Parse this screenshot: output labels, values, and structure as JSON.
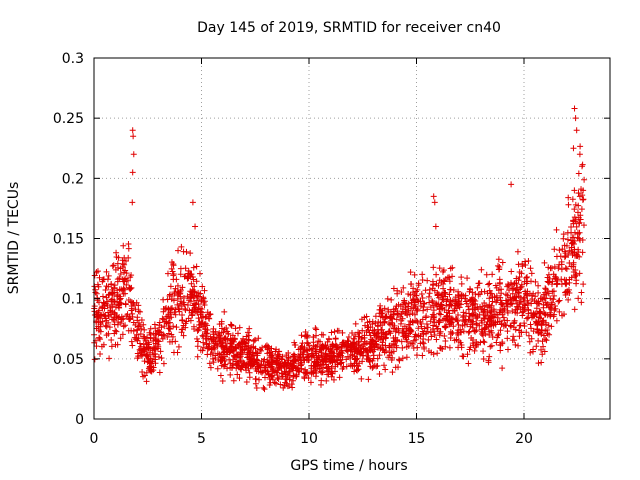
{
  "chart_data": {
    "type": "scatter",
    "title": "Day 145 of 2019, SRMTID for receiver cn40",
    "xlabel": "GPS time / hours",
    "ylabel": "SRMTID / TECUs",
    "xlim": [
      0,
      24
    ],
    "ylim": [
      0,
      0.3
    ],
    "x_ticks": [
      0,
      5,
      10,
      15,
      20
    ],
    "y_ticks": [
      0,
      0.05,
      0.1,
      0.15,
      0.2,
      0.25,
      0.3
    ],
    "x_tick_labels": [
      "0",
      "5",
      "10",
      "15",
      "20"
    ],
    "y_tick_labels": [
      "0",
      "0.05",
      "0.1",
      "0.15",
      "0.2",
      "0.25",
      "0.3"
    ],
    "grid": true,
    "marker": "+",
    "color": "#e00000",
    "trend": [
      [
        0.0,
        0.085
      ],
      [
        0.5,
        0.09
      ],
      [
        1.0,
        0.095
      ],
      [
        1.5,
        0.105
      ],
      [
        2.0,
        0.07
      ],
      [
        2.5,
        0.05
      ],
      [
        3.0,
        0.06
      ],
      [
        3.5,
        0.09
      ],
      [
        4.0,
        0.1
      ],
      [
        4.5,
        0.105
      ],
      [
        5.0,
        0.08
      ],
      [
        5.5,
        0.065
      ],
      [
        6.0,
        0.06
      ],
      [
        7.0,
        0.055
      ],
      [
        8.0,
        0.045
      ],
      [
        9.0,
        0.04
      ],
      [
        10.0,
        0.055
      ],
      [
        11.0,
        0.05
      ],
      [
        12.0,
        0.055
      ],
      [
        13.0,
        0.065
      ],
      [
        14.0,
        0.075
      ],
      [
        15.0,
        0.085
      ],
      [
        16.0,
        0.09
      ],
      [
        17.0,
        0.085
      ],
      [
        18.0,
        0.085
      ],
      [
        19.0,
        0.09
      ],
      [
        20.0,
        0.1
      ],
      [
        20.5,
        0.08
      ],
      [
        21.0,
        0.085
      ],
      [
        21.5,
        0.11
      ],
      [
        22.0,
        0.13
      ],
      [
        22.5,
        0.15
      ],
      [
        22.8,
        0.16
      ]
    ],
    "highlights": [
      [
        1.8,
        0.24
      ],
      [
        1.82,
        0.235
      ],
      [
        1.85,
        0.22
      ],
      [
        1.8,
        0.205
      ],
      [
        1.78,
        0.18
      ],
      [
        4.6,
        0.18
      ],
      [
        4.7,
        0.16
      ],
      [
        15.8,
        0.185
      ],
      [
        15.85,
        0.18
      ],
      [
        15.9,
        0.16
      ],
      [
        19.4,
        0.195
      ],
      [
        22.35,
        0.258
      ],
      [
        22.4,
        0.25
      ],
      [
        22.45,
        0.24
      ],
      [
        22.3,
        0.225
      ],
      [
        22.6,
        0.22
      ],
      [
        22.7,
        0.21
      ],
      [
        22.75,
        0.19
      ],
      [
        22.6,
        0.185
      ]
    ]
  }
}
